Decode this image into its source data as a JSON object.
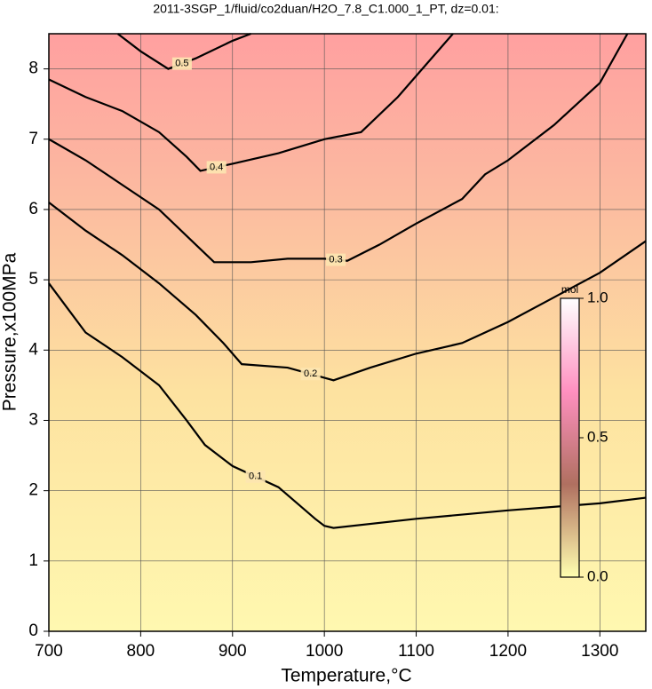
{
  "chart_data": {
    "type": "contour",
    "title": "2011-3SGP_1/fluid/co2duan/H2O_7.8_C1.000_1_PT, dz=0.01:",
    "xlabel": "Temperature,°C",
    "ylabel": "Pressure,x100MPa",
    "xlim": [
      700,
      1350
    ],
    "ylim": [
      0,
      8.5
    ],
    "xticks": [
      700,
      800,
      900,
      1000,
      1100,
      1200,
      1300
    ],
    "yticks": [
      0,
      1,
      2,
      3,
      4,
      5,
      6,
      7,
      8
    ],
    "grid": true,
    "contours": [
      {
        "level": 0.1,
        "x": [
          700,
          720,
          740,
          780,
          820,
          850,
          870,
          900,
          950,
          990,
          1000,
          1010,
          1100,
          1200,
          1300,
          1350
        ],
        "y": [
          4.95,
          4.6,
          4.25,
          3.9,
          3.5,
          3.0,
          2.65,
          2.35,
          2.05,
          1.6,
          1.5,
          1.47,
          1.6,
          1.72,
          1.82,
          1.9
        ]
      },
      {
        "level": 0.2,
        "x": [
          700,
          740,
          780,
          820,
          860,
          890,
          910,
          960,
          1010,
          1050,
          1100,
          1150,
          1200,
          1250,
          1300,
          1350
        ],
        "y": [
          6.1,
          5.7,
          5.35,
          4.95,
          4.5,
          4.1,
          3.8,
          3.75,
          3.57,
          3.75,
          3.95,
          4.1,
          4.4,
          4.75,
          5.1,
          5.55
        ]
      },
      {
        "level": 0.3,
        "x": [
          700,
          740,
          780,
          820,
          860,
          880,
          920,
          960,
          1000,
          1025,
          1060,
          1100,
          1150,
          1175,
          1200,
          1250,
          1300,
          1330
        ],
        "y": [
          7.0,
          6.7,
          6.35,
          6.0,
          5.5,
          5.25,
          5.25,
          5.3,
          5.3,
          5.27,
          5.5,
          5.8,
          6.15,
          6.5,
          6.7,
          7.2,
          7.8,
          8.5
        ]
      },
      {
        "level": 0.4,
        "x": [
          700,
          740,
          780,
          820,
          850,
          865,
          900,
          950,
          1000,
          1040,
          1080,
          1120,
          1140
        ],
        "y": [
          7.85,
          7.6,
          7.4,
          7.1,
          6.75,
          6.55,
          6.65,
          6.8,
          7.0,
          7.1,
          7.6,
          8.2,
          8.5
        ]
      },
      {
        "level": 0.5,
        "x": [
          775,
          800,
          830,
          860,
          900,
          920
        ],
        "y": [
          8.5,
          8.25,
          8.0,
          8.15,
          8.4,
          8.5
        ]
      }
    ],
    "colorbar": {
      "label": "mol",
      "lim": [
        0,
        1
      ],
      "colors": [
        "#ffffb0",
        "#b07060",
        "#ff90c0",
        "#ffffff"
      ],
      "ticks": [
        {
          "value": 0,
          "label": "0.0"
        },
        {
          "value": 0.5,
          "label": "0.5"
        },
        {
          "value": 1,
          "label": "1.0"
        }
      ]
    }
  }
}
